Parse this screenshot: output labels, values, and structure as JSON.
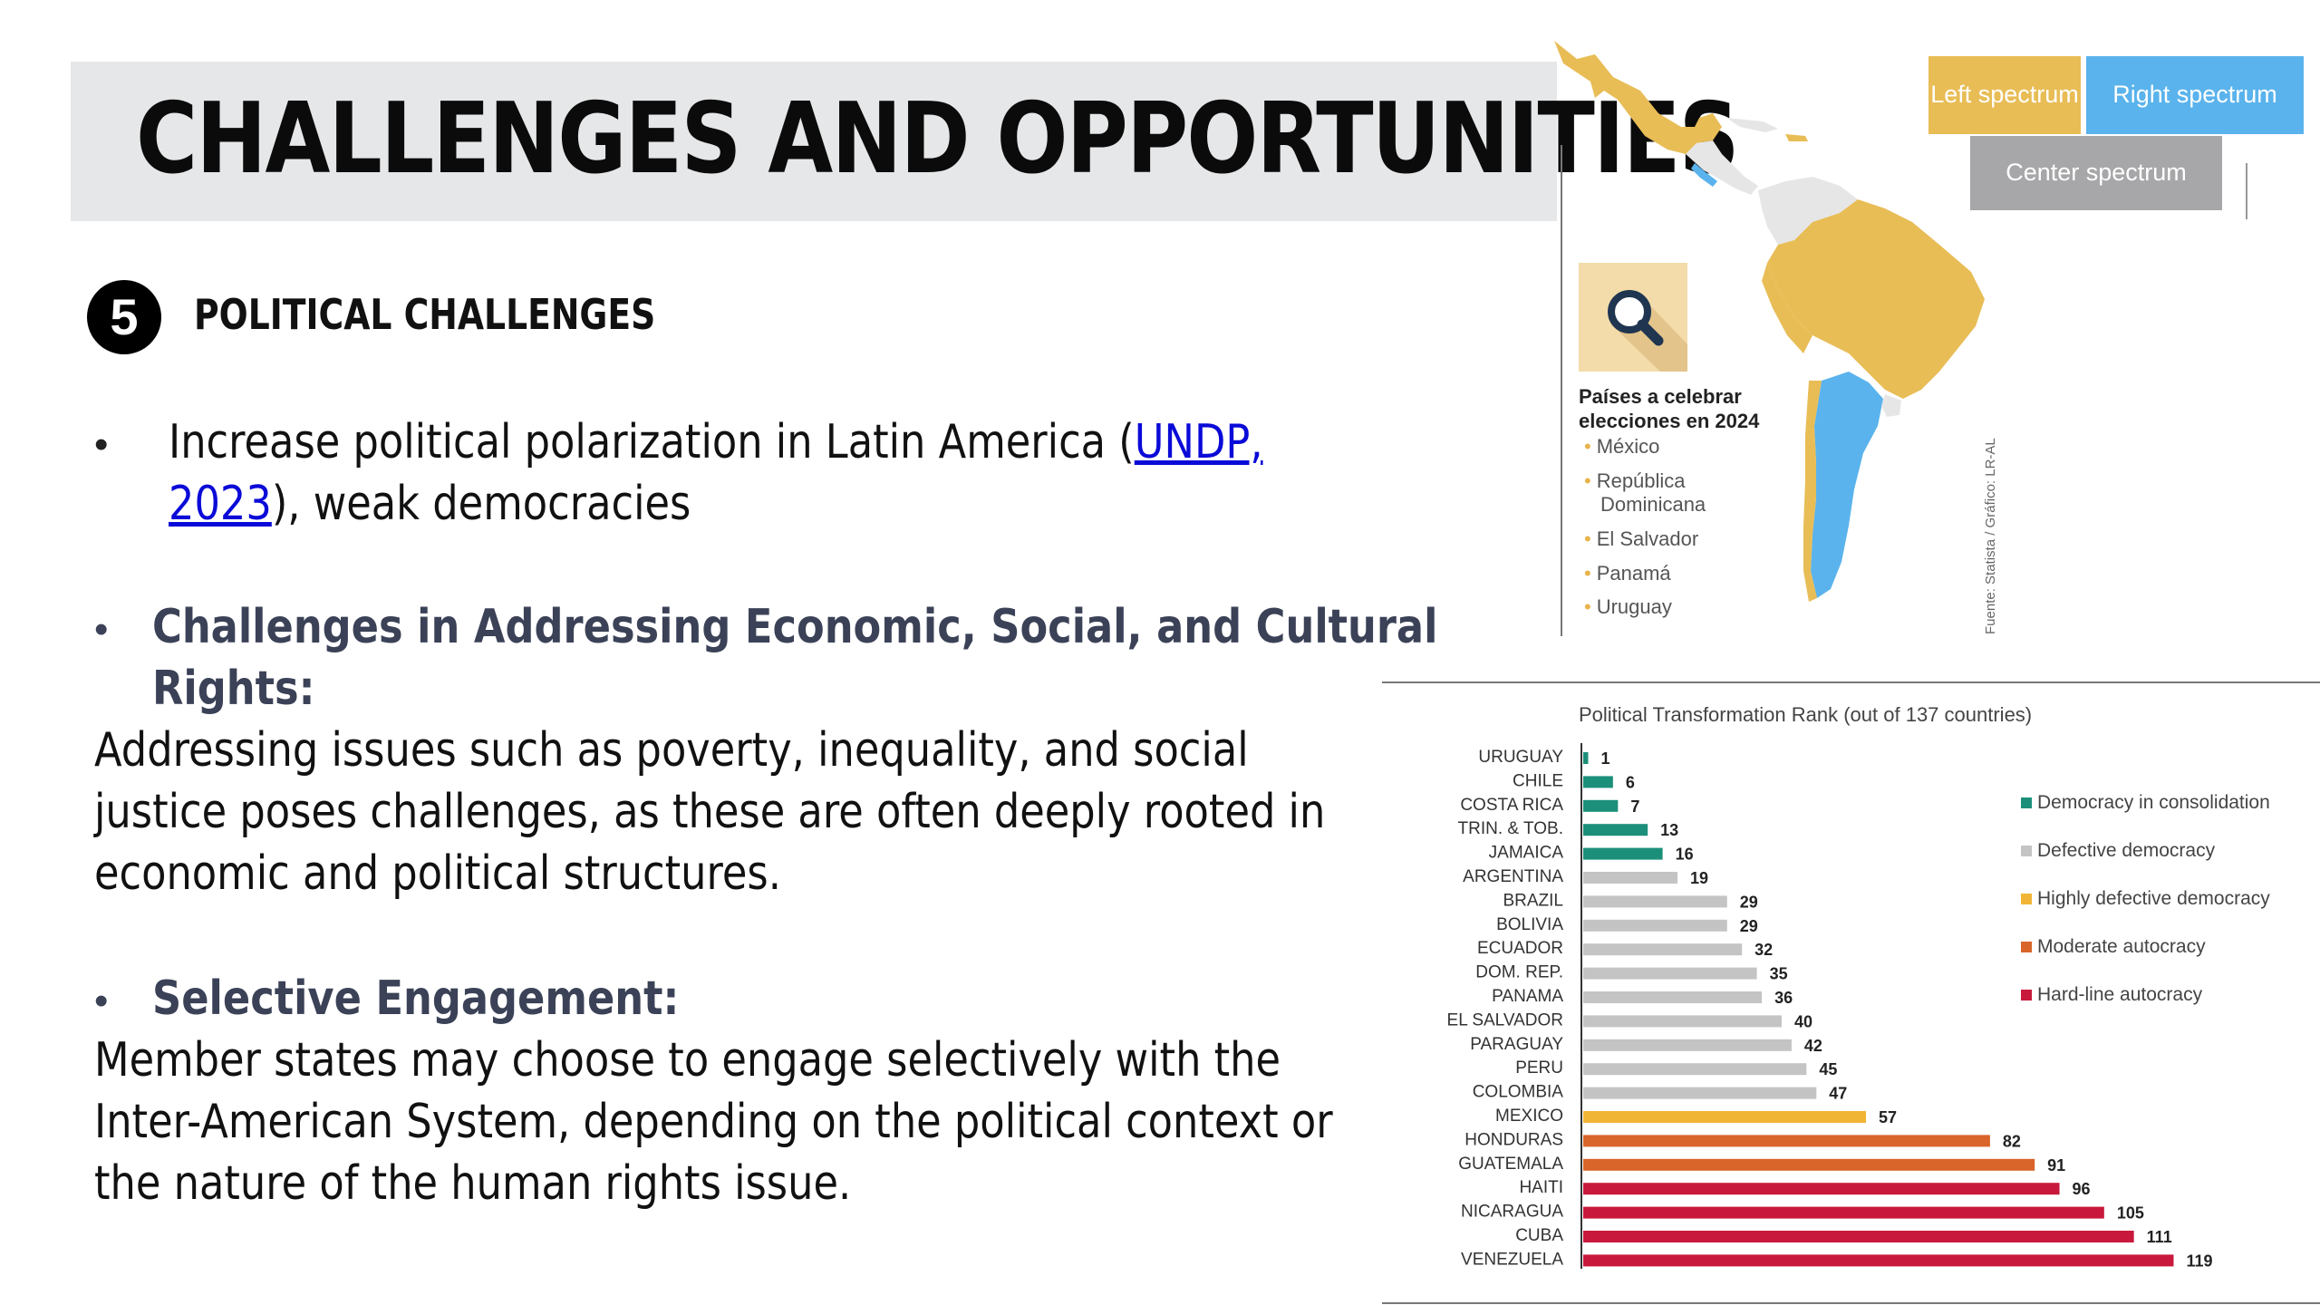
{
  "slide": {
    "title": "CHALLENGES AND OPPORTUNITIES",
    "section_number": "5",
    "section_title": "POLITICAL CHALLENGES",
    "bullet1": {
      "text_before": "Increase political polarization in Latin America (",
      "link_text_1": "UNDP,",
      "link_text_2": "2023",
      "text_after": "), weak democracies"
    },
    "bullet2": {
      "heading_line1": "Challenges in Addressing Economic, Social, and Cultural",
      "heading_line2": "Rights:",
      "body_line1": "Addressing issues such as poverty, inequality, and social",
      "body_line2": "justice poses challenges, as these are often deeply rooted in",
      "body_line3": "economic and political structures."
    },
    "bullet3": {
      "heading": "Selective Engagement:",
      "body_line1": "Member states may choose to engage selectively with the",
      "body_line2": "Inter-American System, depending on the political context or",
      "body_line3": "the nature of the human rights issue."
    }
  },
  "map": {
    "legend": {
      "left": "Left spectrum",
      "right": "Right spectrum",
      "center": "Center spectrum"
    },
    "colors": {
      "left": "#e8bd56",
      "right": "#5ab3ec",
      "center": "#a7a7a9",
      "other": "#e6e6e6"
    },
    "icon": "magnifier-icon",
    "countries_title_line1": "Países a celebrar",
    "countries_title_line2": "elecciones en 2024",
    "countries": [
      "México",
      "República",
      "Dominicana",
      "El Salvador",
      "Panamá",
      "Uruguay"
    ],
    "source": "Fuente: Statista / Gráfico: LR-AL"
  },
  "chart_data": {
    "type": "bar",
    "orientation": "horizontal",
    "title": "Political Transformation Rank (out of 137 countries)",
    "categories": [
      "URUGUAY",
      "CHILE",
      "COSTA RICA",
      "TRIN. & TOB.",
      "JAMAICA",
      "ARGENTINA",
      "BRAZIL",
      "BOLIVIA",
      "ECUADOR",
      "DOM. REP.",
      "PANAMA",
      "EL SALVADOR",
      "PARAGUAY",
      "PERU",
      "COLOMBIA",
      "MEXICO",
      "HONDURAS",
      "GUATEMALA",
      "HAITI",
      "NICARAGUA",
      "CUBA",
      "VENEZUELA"
    ],
    "values": [
      1,
      6,
      7,
      13,
      16,
      19,
      29,
      29,
      32,
      35,
      36,
      40,
      42,
      45,
      47,
      57,
      82,
      91,
      96,
      105,
      111,
      119
    ],
    "groups": [
      "Democracy in consolidation",
      "Democracy in consolidation",
      "Democracy in consolidation",
      "Democracy in consolidation",
      "Democracy in consolidation",
      "Defective democracy",
      "Defective democracy",
      "Defective democracy",
      "Defective democracy",
      "Defective democracy",
      "Defective democracy",
      "Defective democracy",
      "Defective democracy",
      "Defective democracy",
      "Defective democracy",
      "Highly defective democracy",
      "Moderate autocracy",
      "Moderate autocracy",
      "Hard-line autocracy",
      "Hard-line autocracy",
      "Hard-line autocracy",
      "Hard-line autocracy"
    ],
    "legend": [
      {
        "name": "Democracy in consolidation",
        "color": "#1c8f7a"
      },
      {
        "name": "Defective democracy",
        "color": "#c4c4c4"
      },
      {
        "name": "Highly defective democracy",
        "color": "#f1b535"
      },
      {
        "name": "Moderate autocracy",
        "color": "#d9652a"
      },
      {
        "name": "Hard-line autocracy",
        "color": "#c8193c"
      }
    ],
    "legend_position": "right",
    "grid": false,
    "xlim": [
      0,
      137
    ]
  }
}
